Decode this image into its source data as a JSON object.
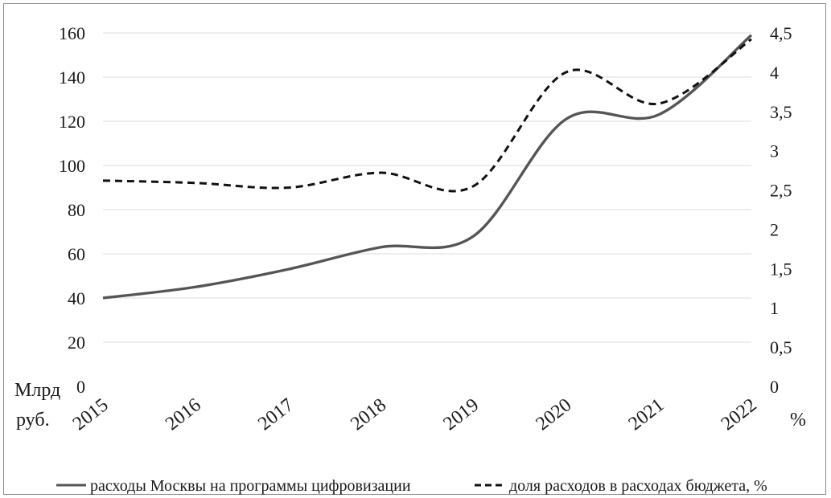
{
  "chart_data": {
    "type": "line",
    "x": [
      "2015",
      "2016",
      "2017",
      "2018",
      "2019",
      "2020",
      "2021",
      "2022"
    ],
    "left_axis": {
      "label_line1": "Млрд",
      "label_line2": "руб.",
      "ylim": [
        0,
        160
      ],
      "ticks": [
        "0",
        "20",
        "40",
        "60",
        "80",
        "100",
        "120",
        "140",
        "160"
      ]
    },
    "right_axis": {
      "label": "%",
      "ylim": [
        0,
        4.5
      ],
      "ticks": [
        "0",
        "0,5",
        "1",
        "1,5",
        "2",
        "2,5",
        "3",
        "3,5",
        "4",
        "4,5"
      ]
    },
    "series": [
      {
        "name": "расходы Москвы на программы цифровизации",
        "axis": "left",
        "style": "solid",
        "color": "#555555",
        "values": [
          40,
          45,
          53,
          63,
          68,
          121,
          123,
          159
        ]
      },
      {
        "name": "доля расходов в расходах бюджета, %",
        "axis": "right",
        "style": "dashed",
        "color": "#111111",
        "values": [
          2.62,
          2.59,
          2.53,
          2.72,
          2.55,
          4.0,
          3.6,
          4.42
        ]
      }
    ],
    "grid": true,
    "legend_position": "bottom"
  }
}
